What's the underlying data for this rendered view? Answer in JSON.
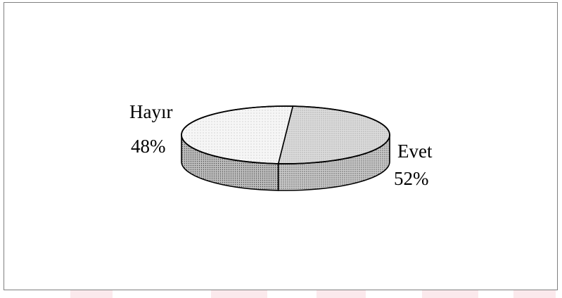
{
  "chart_data": {
    "type": "pie",
    "title": "",
    "categories": [
      "Hayır",
      "Evet"
    ],
    "values": [
      48,
      52
    ],
    "labels": [
      {
        "name": "Hayır",
        "percent": "48%"
      },
      {
        "name": "Evet",
        "percent": "52%"
      }
    ],
    "style": "3d",
    "legend": "none"
  },
  "colors": {
    "frame": "#7f7f7f",
    "hayir_top": "#f4f4f4",
    "evet_top": "#d6d6d6",
    "hayir_side": "#cfcfcf",
    "evet_side": "#bdbdbd",
    "outline": "#000000",
    "footer_tint": "#fbe3e6"
  }
}
